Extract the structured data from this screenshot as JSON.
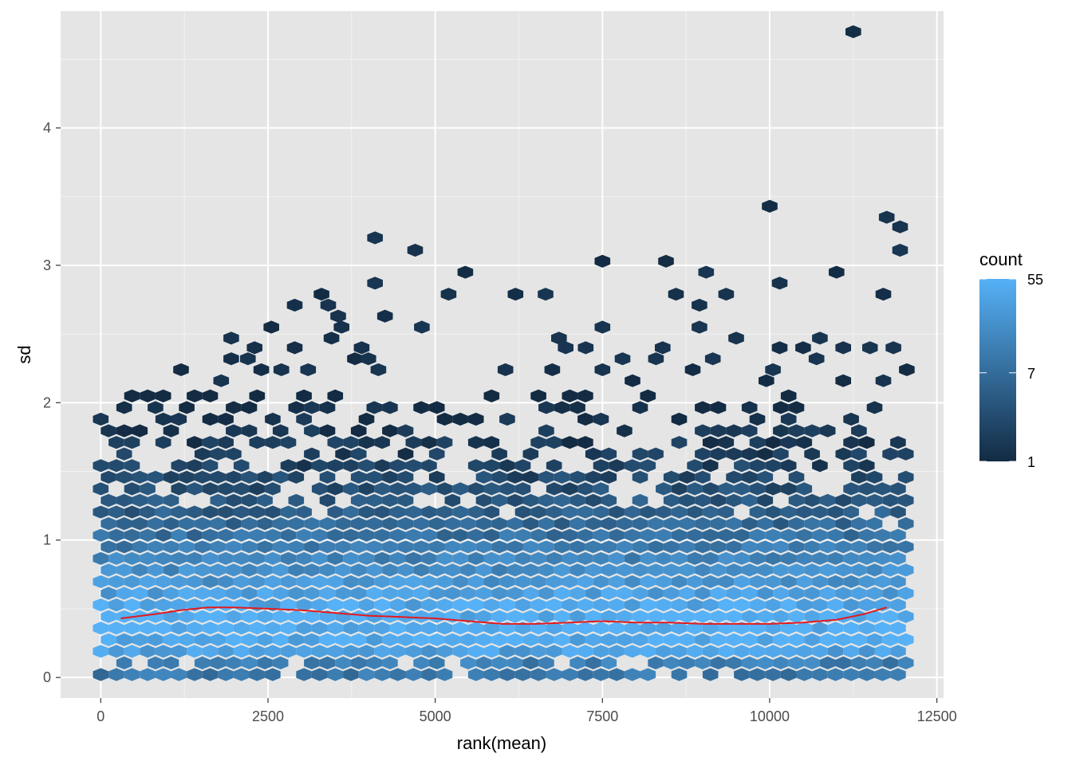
{
  "chart_data": {
    "type": "heatmap",
    "geom": "hexbin",
    "xlabel": "rank(mean)",
    "ylabel": "sd",
    "xlim": [
      -600,
      12600
    ],
    "ylim": [
      -0.15,
      4.85
    ],
    "x_ticks": [
      0,
      2500,
      5000,
      7500,
      10000,
      12500
    ],
    "x_tick_labels": [
      "0",
      "2500",
      "5000",
      "7500",
      "10000",
      "12500"
    ],
    "y_ticks": [
      0,
      1,
      2,
      3,
      4
    ],
    "y_tick_labels": [
      "0",
      "1",
      "2",
      "3",
      "4"
    ],
    "grid": true,
    "background": "#e5e5e5",
    "legend": {
      "title": "count",
      "position": "right",
      "scale": "log",
      "breaks": [
        55,
        7,
        1
      ],
      "break_labels": [
        "55",
        "7",
        "1"
      ],
      "low_color": "#132b43",
      "high_color": "#56b1f7"
    },
    "x_range": [
      0,
      12050
    ],
    "sd_density_profile": {
      "sd": [
        0.1,
        0.2,
        0.3,
        0.4,
        0.5,
        0.6,
        0.7,
        0.8,
        0.9,
        1.0,
        1.1,
        1.2,
        1.3,
        1.4,
        1.5,
        1.6,
        1.7,
        1.8,
        1.9,
        2.0
      ],
      "approx_count_per_bin": [
        12,
        38,
        52,
        55,
        45,
        35,
        26,
        19,
        14,
        10,
        7,
        5,
        4,
        3,
        2.2,
        1.8,
        1.5,
        1.3,
        1.1,
        1.0
      ]
    },
    "outlier_points": [
      {
        "x": 11250,
        "y": 4.7
      },
      {
        "x": 10000,
        "y": 3.43
      },
      {
        "x": 11750,
        "y": 3.35
      },
      {
        "x": 11950,
        "y": 3.28
      },
      {
        "x": 4100,
        "y": 3.2
      },
      {
        "x": 11950,
        "y": 3.11
      },
      {
        "x": 4700,
        "y": 3.11
      },
      {
        "x": 7500,
        "y": 3.03
      },
      {
        "x": 8450,
        "y": 3.03
      },
      {
        "x": 5450,
        "y": 2.95
      },
      {
        "x": 9050,
        "y": 2.95
      },
      {
        "x": 11000,
        "y": 2.95
      },
      {
        "x": 4100,
        "y": 2.87
      },
      {
        "x": 10150,
        "y": 2.87
      },
      {
        "x": 3300,
        "y": 2.79
      },
      {
        "x": 5200,
        "y": 2.79
      },
      {
        "x": 6200,
        "y": 2.79
      },
      {
        "x": 6650,
        "y": 2.79
      },
      {
        "x": 8600,
        "y": 2.79
      },
      {
        "x": 9350,
        "y": 2.79
      },
      {
        "x": 11700,
        "y": 2.79
      },
      {
        "x": 2900,
        "y": 2.71
      },
      {
        "x": 3400,
        "y": 2.71
      },
      {
        "x": 8950,
        "y": 2.71
      },
      {
        "x": 3550,
        "y": 2.63
      },
      {
        "x": 4250,
        "y": 2.63
      },
      {
        "x": 2550,
        "y": 2.55
      },
      {
        "x": 3600,
        "y": 2.55
      },
      {
        "x": 4800,
        "y": 2.55
      },
      {
        "x": 7500,
        "y": 2.55
      },
      {
        "x": 8950,
        "y": 2.55
      },
      {
        "x": 1950,
        "y": 2.47
      },
      {
        "x": 3450,
        "y": 2.47
      },
      {
        "x": 6850,
        "y": 2.47
      },
      {
        "x": 9500,
        "y": 2.47
      },
      {
        "x": 10750,
        "y": 2.47
      },
      {
        "x": 3900,
        "y": 2.4
      },
      {
        "x": 2300,
        "y": 2.4
      },
      {
        "x": 2900,
        "y": 2.4
      },
      {
        "x": 6950,
        "y": 2.4
      },
      {
        "x": 7250,
        "y": 2.4
      },
      {
        "x": 8400,
        "y": 2.4
      },
      {
        "x": 10150,
        "y": 2.4
      },
      {
        "x": 10500,
        "y": 2.4
      },
      {
        "x": 11100,
        "y": 2.4
      },
      {
        "x": 11500,
        "y": 2.4
      },
      {
        "x": 11850,
        "y": 2.4
      },
      {
        "x": 1950,
        "y": 2.32
      },
      {
        "x": 2200,
        "y": 2.32
      },
      {
        "x": 3800,
        "y": 2.32
      },
      {
        "x": 4000,
        "y": 2.32
      },
      {
        "x": 7800,
        "y": 2.32
      },
      {
        "x": 8300,
        "y": 2.32
      },
      {
        "x": 9150,
        "y": 2.32
      },
      {
        "x": 10700,
        "y": 2.32
      },
      {
        "x": 1200,
        "y": 2.24
      },
      {
        "x": 2400,
        "y": 2.24
      },
      {
        "x": 2700,
        "y": 2.24
      },
      {
        "x": 3100,
        "y": 2.24
      },
      {
        "x": 4150,
        "y": 2.24
      },
      {
        "x": 6050,
        "y": 2.24
      },
      {
        "x": 6750,
        "y": 2.24
      },
      {
        "x": 7500,
        "y": 2.24
      },
      {
        "x": 8850,
        "y": 2.24
      },
      {
        "x": 10050,
        "y": 2.24
      },
      {
        "x": 12050,
        "y": 2.24
      },
      {
        "x": 1800,
        "y": 2.16
      },
      {
        "x": 7950,
        "y": 2.16
      },
      {
        "x": 9950,
        "y": 2.16
      },
      {
        "x": 11100,
        "y": 2.16
      },
      {
        "x": 11700,
        "y": 2.16
      }
    ],
    "mean_trend": {
      "color": "#e41a1c",
      "x": [
        300,
        800,
        1200,
        1600,
        2000,
        2500,
        3000,
        3500,
        4000,
        4500,
        5000,
        5500,
        6000,
        6500,
        7000,
        7500,
        8000,
        8500,
        9000,
        9500,
        10000,
        10500,
        11000,
        11400,
        11750
      ],
      "y": [
        0.43,
        0.46,
        0.49,
        0.51,
        0.51,
        0.5,
        0.49,
        0.47,
        0.45,
        0.44,
        0.43,
        0.41,
        0.39,
        0.39,
        0.4,
        0.41,
        0.4,
        0.4,
        0.39,
        0.39,
        0.39,
        0.4,
        0.42,
        0.46,
        0.51
      ]
    }
  }
}
